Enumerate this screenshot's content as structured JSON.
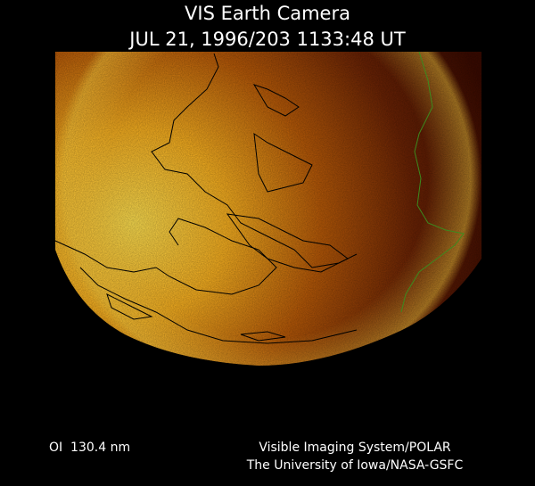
{
  "header": {
    "title": "VIS Earth Camera",
    "timestamp": "JUL 21, 1996/203 1133:48 UT"
  },
  "footer": {
    "filter": "OI  130.4 nm",
    "instrument": "Visible Imaging System/POLAR",
    "institution": "The University of Iowa/NASA-GSFC"
  }
}
